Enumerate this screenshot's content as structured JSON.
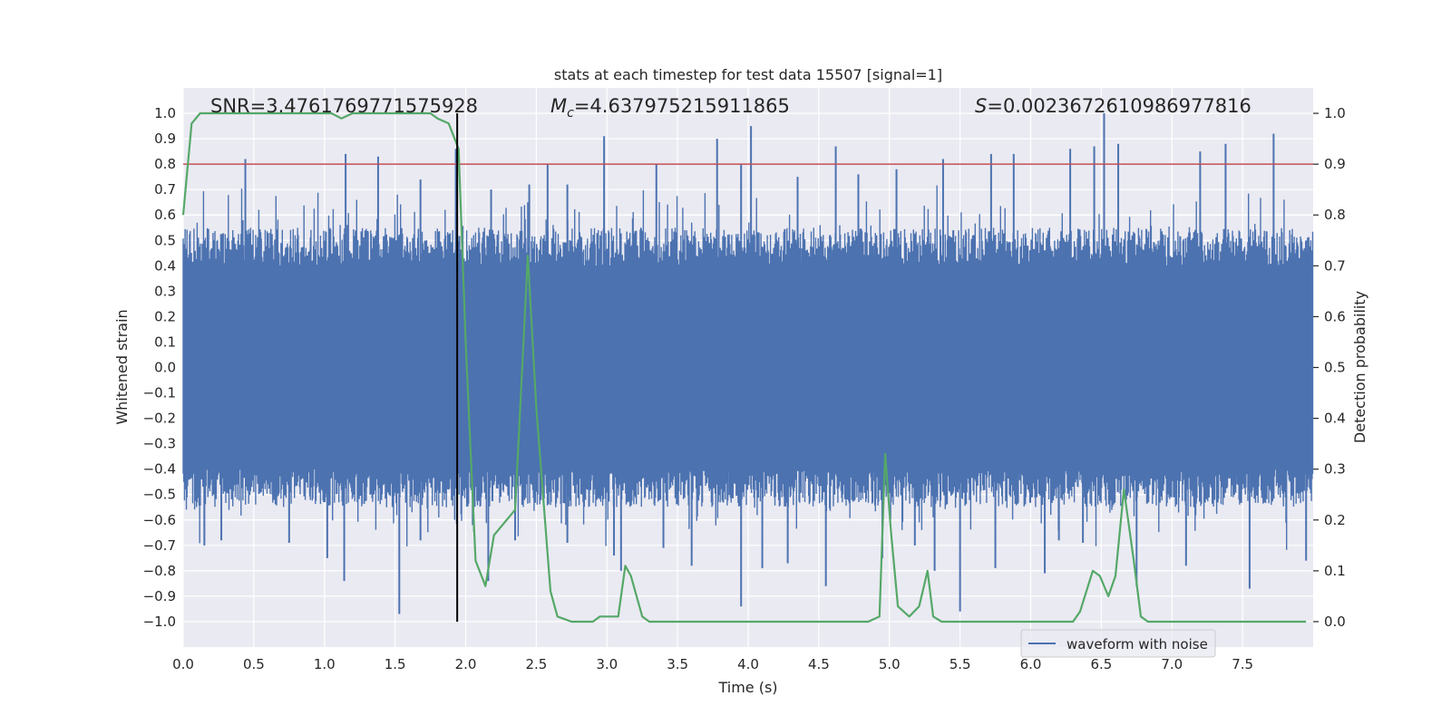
{
  "chart_data": {
    "type": "line",
    "title": "stats at each timestep for test data 15507 [signal=1]",
    "xlabel": "Time (s)",
    "ylabel": "Whitened strain",
    "y2label": "Detection probability",
    "xlim": [
      0.0,
      8.0
    ],
    "ylim": [
      -1.1,
      1.1
    ],
    "y2lim": [
      -0.05,
      1.05
    ],
    "grid": true,
    "x_ticks": [
      "0.0",
      "0.5",
      "1.0",
      "1.5",
      "2.0",
      "2.5",
      "3.0",
      "3.5",
      "4.0",
      "4.5",
      "5.0",
      "5.5",
      "6.0",
      "6.5",
      "7.0",
      "7.5"
    ],
    "x_tick_values": [
      0.0,
      0.5,
      1.0,
      1.5,
      2.0,
      2.5,
      3.0,
      3.5,
      4.0,
      4.5,
      5.0,
      5.5,
      6.0,
      6.5,
      7.0,
      7.5
    ],
    "y_ticks": [
      "1.0",
      "0.9",
      "0.8",
      "0.7",
      "0.6",
      "0.5",
      "0.4",
      "0.3",
      "0.2",
      "0.1",
      "0.0",
      "−0.1",
      "−0.2",
      "−0.3",
      "−0.4",
      "−0.5",
      "−0.6",
      "−0.7",
      "−0.8",
      "−0.9",
      "−1.0"
    ],
    "y_tick_values": [
      1.0,
      0.9,
      0.8,
      0.7,
      0.6,
      0.5,
      0.4,
      0.3,
      0.2,
      0.1,
      0.0,
      -0.1,
      -0.2,
      -0.3,
      -0.4,
      -0.5,
      -0.6,
      -0.7,
      -0.8,
      -0.9,
      -1.0
    ],
    "y2_ticks": [
      "1.0",
      "0.9",
      "0.8",
      "0.7",
      "0.6",
      "0.5",
      "0.4",
      "0.3",
      "0.2",
      "0.1",
      "0.0"
    ],
    "y2_tick_values": [
      1.0,
      0.9,
      0.8,
      0.7,
      0.6,
      0.5,
      0.4,
      0.3,
      0.2,
      0.1,
      0.0
    ],
    "annotations": {
      "snr": "SNR=3.4761769771575928",
      "mc_symbol": "M",
      "mc_sub": "c",
      "mc_value": "=4.637975215911865",
      "s_symbol": "S",
      "s_value": "=0.0023672610986977816"
    },
    "threshold": {
      "value": 0.9,
      "axis": "y2",
      "color": "#c44e52"
    },
    "marker_time": 1.94,
    "legend": {
      "label": "waveform with noise",
      "location": "lower-right"
    },
    "colors": {
      "waveform": "#4c72b0",
      "probability": "#55a868",
      "threshold": "#c44e52",
      "marker": "#000000",
      "background": "#eaeaf2"
    },
    "series": [
      {
        "name": "waveform with noise",
        "kind": "waveform",
        "duration": 8.0,
        "core_amplitude": 0.4,
        "typical_peak": 0.55,
        "spikes": [
          {
            "t": 0.44,
            "v": 0.82
          },
          {
            "t": 1.15,
            "v": 0.84
          },
          {
            "t": 1.38,
            "v": 0.83
          },
          {
            "t": 1.68,
            "v": 0.74
          },
          {
            "t": 1.93,
            "v": 0.86
          },
          {
            "t": 2.18,
            "v": 0.7
          },
          {
            "t": 2.45,
            "v": 0.72
          },
          {
            "t": 2.58,
            "v": 0.8
          },
          {
            "t": 2.72,
            "v": 0.72
          },
          {
            "t": 2.98,
            "v": 0.91
          },
          {
            "t": 3.35,
            "v": 0.8
          },
          {
            "t": 3.78,
            "v": 0.9
          },
          {
            "t": 3.95,
            "v": 0.8
          },
          {
            "t": 4.02,
            "v": 0.95
          },
          {
            "t": 4.35,
            "v": 0.75
          },
          {
            "t": 4.62,
            "v": 0.87
          },
          {
            "t": 4.78,
            "v": 0.76
          },
          {
            "t": 5.05,
            "v": 0.78
          },
          {
            "t": 5.38,
            "v": 0.82
          },
          {
            "t": 5.72,
            "v": 0.84
          },
          {
            "t": 5.88,
            "v": 0.84
          },
          {
            "t": 6.28,
            "v": 0.86
          },
          {
            "t": 6.45,
            "v": 0.87
          },
          {
            "t": 6.52,
            "v": 1.0
          },
          {
            "t": 6.62,
            "v": 0.88
          },
          {
            "t": 7.2,
            "v": 0.85
          },
          {
            "t": 7.38,
            "v": 0.88
          },
          {
            "t": 7.72,
            "v": 0.92
          },
          {
            "t": 7.95,
            "v": 0.5
          },
          {
            "t": 0.15,
            "v": -0.7
          },
          {
            "t": 0.27,
            "v": -0.68
          },
          {
            "t": 0.75,
            "v": -0.69
          },
          {
            "t": 1.02,
            "v": -0.75
          },
          {
            "t": 1.14,
            "v": -0.84
          },
          {
            "t": 1.53,
            "v": -0.97
          },
          {
            "t": 1.68,
            "v": -0.68
          },
          {
            "t": 2.05,
            "v": -0.62
          },
          {
            "t": 2.16,
            "v": -0.84
          },
          {
            "t": 2.35,
            "v": -0.68
          },
          {
            "t": 2.72,
            "v": -0.69
          },
          {
            "t": 3.05,
            "v": -0.74
          },
          {
            "t": 3.1,
            "v": -0.8
          },
          {
            "t": 3.4,
            "v": -0.71
          },
          {
            "t": 3.6,
            "v": -0.78
          },
          {
            "t": 3.95,
            "v": -0.94
          },
          {
            "t": 4.1,
            "v": -0.79
          },
          {
            "t": 4.28,
            "v": -0.77
          },
          {
            "t": 4.55,
            "v": -0.86
          },
          {
            "t": 4.95,
            "v": -0.75
          },
          {
            "t": 5.18,
            "v": -0.7
          },
          {
            "t": 5.32,
            "v": -0.8
          },
          {
            "t": 5.5,
            "v": -0.96
          },
          {
            "t": 5.75,
            "v": -0.79
          },
          {
            "t": 6.1,
            "v": -0.81
          },
          {
            "t": 6.2,
            "v": -0.68
          },
          {
            "t": 6.37,
            "v": -0.69
          },
          {
            "t": 6.75,
            "v": -0.86
          },
          {
            "t": 7.1,
            "v": -0.78
          },
          {
            "t": 7.55,
            "v": -0.87
          },
          {
            "t": 7.95,
            "v": -0.76
          }
        ]
      },
      {
        "name": "detection probability",
        "kind": "line",
        "axis": "y2",
        "x": [
          0.0,
          0.06,
          0.12,
          0.25,
          0.5,
          0.75,
          0.9,
          1.05,
          1.12,
          1.2,
          1.3,
          1.5,
          1.75,
          1.8,
          1.88,
          1.95,
          2.0,
          2.07,
          2.14,
          2.2,
          2.35,
          2.44,
          2.5,
          2.6,
          2.65,
          2.75,
          2.9,
          2.95,
          3.08,
          3.13,
          3.17,
          3.25,
          3.3,
          3.5,
          3.75,
          3.85,
          3.95,
          4.1,
          4.3,
          4.5,
          4.65,
          4.85,
          4.93,
          4.97,
          5.01,
          5.06,
          5.14,
          5.21,
          5.27,
          5.31,
          5.37,
          5.43,
          5.5,
          5.7,
          5.9,
          6.1,
          6.2,
          6.3,
          6.35,
          6.44,
          6.49,
          6.55,
          6.6,
          6.66,
          6.73,
          6.78,
          6.83,
          7.0,
          7.5,
          7.95
        ],
        "y": [
          0.8,
          0.98,
          1.0,
          1.0,
          1.0,
          1.0,
          1.0,
          1.0,
          0.99,
          1.0,
          1.0,
          1.0,
          1.0,
          0.99,
          0.98,
          0.93,
          0.55,
          0.12,
          0.07,
          0.17,
          0.22,
          0.72,
          0.42,
          0.06,
          0.01,
          0.0,
          0.0,
          0.01,
          0.01,
          0.11,
          0.09,
          0.01,
          0.0,
          0.0,
          0.0,
          0.0,
          0.0,
          0.0,
          0.0,
          0.0,
          0.0,
          0.0,
          0.01,
          0.33,
          0.18,
          0.03,
          0.01,
          0.03,
          0.1,
          0.01,
          0.0,
          0.0,
          0.0,
          0.0,
          0.0,
          0.0,
          0.0,
          0.0,
          0.02,
          0.1,
          0.09,
          0.05,
          0.09,
          0.26,
          0.12,
          0.01,
          0.0,
          0.0,
          0.0,
          0.0
        ]
      }
    ]
  }
}
